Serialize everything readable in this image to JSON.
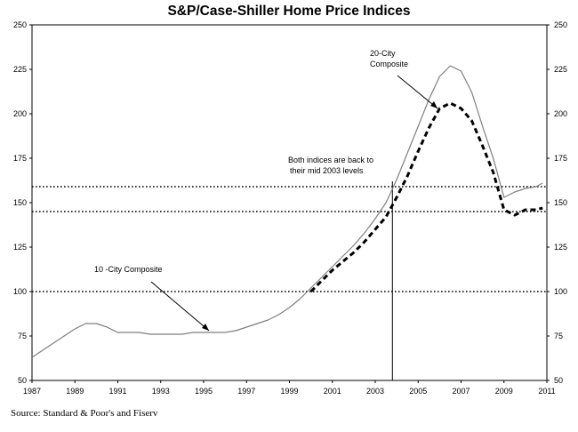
{
  "chart_data": {
    "type": "line",
    "title": "S&P/Case-Shiller Home Price Indices",
    "source": "Source: Standard & Poor's and Fiserv",
    "xlim": [
      1987,
      2011
    ],
    "ylim": [
      50,
      250
    ],
    "x_ticks": [
      "1987",
      "1989",
      "1991",
      "1993",
      "1995",
      "1997",
      "1999",
      "2001",
      "2003",
      "2005",
      "2007",
      "2009",
      "2011"
    ],
    "y_ticks": [
      "50",
      "75",
      "100",
      "125",
      "150",
      "175",
      "200",
      "225",
      "250"
    ],
    "grid": false,
    "reference_lines": [
      100,
      145,
      159
    ],
    "vertical_line_x": 2003.8,
    "series": [
      {
        "name": "10 -City Composite",
        "style": "solid",
        "color": "#7f7f7f",
        "x": [
          1987.0,
          1987.5,
          1988.0,
          1988.5,
          1989.0,
          1989.5,
          1990.0,
          1990.5,
          1991.0,
          1991.5,
          1992.0,
          1992.5,
          1993.0,
          1993.5,
          1994.0,
          1994.5,
          1995.0,
          1995.5,
          1996.0,
          1996.5,
          1997.0,
          1997.5,
          1998.0,
          1998.5,
          1999.0,
          1999.5,
          2000.0,
          2000.5,
          2001.0,
          2001.5,
          2002.0,
          2002.5,
          2003.0,
          2003.5,
          2004.0,
          2004.5,
          2005.0,
          2005.5,
          2006.0,
          2006.5,
          2007.0,
          2007.5,
          2008.0,
          2008.5,
          2009.0,
          2009.5,
          2010.0,
          2010.5,
          2010.8
        ],
        "y": [
          63,
          67,
          71,
          75,
          79,
          82,
          82,
          80,
          77,
          77,
          77,
          76,
          76,
          76,
          76,
          77,
          77,
          77,
          77,
          78,
          80,
          82,
          84,
          87,
          91,
          96,
          102,
          108,
          114,
          120,
          126,
          133,
          141,
          150,
          163,
          178,
          193,
          208,
          221,
          227,
          224,
          212,
          193,
          175,
          153,
          156,
          158,
          159,
          161
        ]
      },
      {
        "name": "20-City Composite",
        "style": "dashed",
        "color": "#000000",
        "x": [
          2000.0,
          2000.5,
          2001.0,
          2001.5,
          2002.0,
          2002.5,
          2003.0,
          2003.5,
          2004.0,
          2004.5,
          2005.0,
          2005.5,
          2006.0,
          2006.5,
          2007.0,
          2007.5,
          2008.0,
          2008.5,
          2009.0,
          2009.5,
          2010.0,
          2010.5,
          2010.8
        ],
        "y": [
          100,
          106,
          112,
          117,
          122,
          128,
          135,
          142,
          153,
          165,
          179,
          192,
          203,
          206,
          203,
          196,
          182,
          167,
          146,
          143,
          146,
          146,
          147
        ]
      }
    ],
    "annotations": {
      "twenty_city": [
        "20-City",
        "Composite"
      ],
      "both_indices": [
        "Both indices are back to",
        "their mid 2003 levels"
      ],
      "ten_city": "10 -City Composite"
    }
  }
}
